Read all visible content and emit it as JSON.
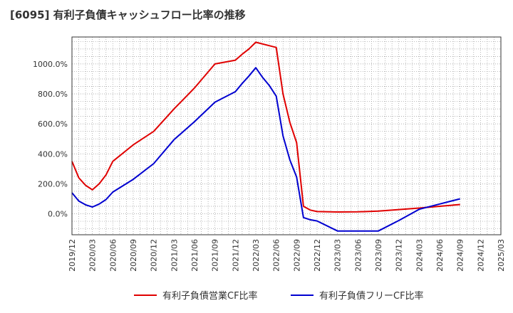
{
  "title": "[6095]  有利子負債キャッシュフロー比率の推移",
  "chart_data": {
    "type": "line",
    "title": "[6095]  有利子負債キャッシュフロー比率の推移",
    "xlabel": "",
    "ylabel": "",
    "x_ticks": [
      "2019/12",
      "2020/03",
      "2020/06",
      "2020/09",
      "2020/12",
      "2021/03",
      "2021/06",
      "2021/09",
      "2021/12",
      "2022/03",
      "2022/06",
      "2022/09",
      "2022/12",
      "2023/03",
      "2023/06",
      "2023/09",
      "2023/12",
      "2024/03",
      "2024/06",
      "2024/09",
      "2024/12",
      "2025/03"
    ],
    "y_ticks": [
      "0.0%",
      "200.0%",
      "400.0%",
      "600.0%",
      "800.0%",
      "1000.0%"
    ],
    "ylim": [
      -140,
      1180
    ],
    "grid": true,
    "legend_position": "bottom",
    "series": [
      {
        "name": "有利子負債営業CF比率",
        "color": "#e00000",
        "points": [
          [
            "2019/12",
            350
          ],
          [
            "2020/01",
            240
          ],
          [
            "2020/02",
            190
          ],
          [
            "2020/03",
            160
          ],
          [
            "2020/04",
            200
          ],
          [
            "2020/05",
            260
          ],
          [
            "2020/06",
            350
          ],
          [
            "2020/09",
            460
          ],
          [
            "2020/12",
            550
          ],
          [
            "2021/03",
            700
          ],
          [
            "2021/06",
            840
          ],
          [
            "2021/09",
            1000
          ],
          [
            "2021/12",
            1025
          ],
          [
            "2022/01",
            1065
          ],
          [
            "2022/02",
            1100
          ],
          [
            "2022/03",
            1145
          ],
          [
            "2022/06",
            1110
          ],
          [
            "2022/07",
            800
          ],
          [
            "2022/08",
            610
          ],
          [
            "2022/09",
            475
          ],
          [
            "2022/10",
            50
          ],
          [
            "2022/11",
            25
          ],
          [
            "2022/12",
            15
          ],
          [
            "2023/03",
            12
          ],
          [
            "2023/06",
            13
          ],
          [
            "2023/09",
            18
          ],
          [
            "2023/12",
            28
          ],
          [
            "2024/03",
            38
          ],
          [
            "2024/06",
            50
          ],
          [
            "2024/09",
            62
          ]
        ]
      },
      {
        "name": "有利子負債フリーCF比率",
        "color": "#0000d0",
        "points": [
          [
            "2019/12",
            140
          ],
          [
            "2020/01",
            85
          ],
          [
            "2020/02",
            60
          ],
          [
            "2020/03",
            45
          ],
          [
            "2020/04",
            65
          ],
          [
            "2020/05",
            95
          ],
          [
            "2020/06",
            145
          ],
          [
            "2020/09",
            230
          ],
          [
            "2020/12",
            335
          ],
          [
            "2021/03",
            495
          ],
          [
            "2021/06",
            615
          ],
          [
            "2021/09",
            745
          ],
          [
            "2021/12",
            815
          ],
          [
            "2022/01",
            870
          ],
          [
            "2022/02",
            920
          ],
          [
            "2022/03",
            975
          ],
          [
            "2022/04",
            910
          ],
          [
            "2022/05",
            855
          ],
          [
            "2022/06",
            785
          ],
          [
            "2022/07",
            520
          ],
          [
            "2022/08",
            360
          ],
          [
            "2022/09",
            245
          ],
          [
            "2022/10",
            -25
          ],
          [
            "2022/11",
            -40
          ],
          [
            "2022/12",
            -48
          ],
          [
            "2023/03",
            -115
          ],
          [
            "2023/06",
            -115
          ],
          [
            "2023/09",
            -115
          ],
          [
            "2023/12",
            -45
          ],
          [
            "2024/03",
            30
          ],
          [
            "2024/06",
            65
          ],
          [
            "2024/09",
            100
          ]
        ]
      }
    ]
  }
}
